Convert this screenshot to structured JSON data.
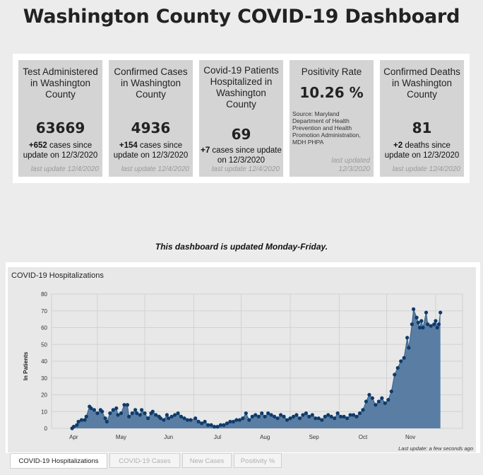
{
  "page": {
    "title": "Washington County COVID-19 Dashboard",
    "notice": "This dashboard is updated Monday-Friday."
  },
  "cards": [
    {
      "title": "Test Administered in Washington County",
      "value": "63669",
      "delta": "+652",
      "delta_text": " cases since update on 12/3/2020",
      "last_update": "last update 12/4/2020"
    },
    {
      "title": "Confirmed Cases in Washington County",
      "value": "4936",
      "delta": "+154",
      "delta_text": " cases since update on 12/3/2020",
      "last_update": "last update 12/4/2020"
    },
    {
      "title": "Covid-19 Patients Hospitalized in Washington County",
      "value": "69",
      "delta": "+7",
      "delta_text": " cases since update on 12/3/2020",
      "last_update": "last update 12/4/2020"
    },
    {
      "title": "Positivity Rate",
      "value": "10.26 %",
      "source": "Source: Maryland Department of Health Prevention and Health Promotion Administration, MDH PHPA",
      "last_update": "last updated 12/3/2020"
    },
    {
      "title": "Confirmed Deaths in Washington County",
      "value": "81",
      "delta": "+2",
      "delta_text": " deaths since update on 12/3/2020",
      "last_update": "last update 12/4/2020"
    }
  ],
  "chart_data": {
    "type": "area",
    "title": "COVID-19 Hospitalizations",
    "ylabel": "In Patients",
    "xlabel": "",
    "ylim": [
      0,
      80
    ],
    "y_ticks": [
      0,
      10,
      20,
      30,
      40,
      50,
      60,
      70,
      80
    ],
    "x_tick_labels": [
      "Apr",
      "May",
      "Jun",
      "Jul",
      "Aug",
      "Sep",
      "Oct",
      "Nov"
    ],
    "x_range_days": [
      -13,
      247
    ],
    "x_days": [
      0,
      1,
      3,
      4,
      6,
      8,
      9,
      11,
      12,
      14,
      16,
      18,
      19,
      21,
      22,
      24,
      26,
      28,
      29,
      31,
      33,
      35,
      36,
      38,
      40,
      41,
      43,
      44,
      46,
      48,
      50,
      51,
      53,
      55,
      56,
      58,
      60,
      61,
      63,
      65,
      67,
      69,
      71,
      73,
      75,
      78,
      80,
      82,
      84,
      86,
      88,
      90,
      92,
      94,
      96,
      98,
      100,
      102,
      104,
      106,
      108,
      110,
      112,
      114,
      116,
      118,
      120,
      122,
      124,
      126,
      128,
      130,
      132,
      134,
      136,
      138,
      140,
      142,
      144,
      146,
      148,
      150,
      152,
      154,
      156,
      158,
      160,
      162,
      164,
      166,
      168,
      170,
      172,
      174,
      176,
      178,
      180,
      182,
      184,
      186,
      188,
      190,
      192,
      194,
      196,
      198,
      200,
      202,
      204,
      206,
      208,
      210,
      212,
      213,
      215,
      216,
      218,
      219,
      220,
      221,
      222,
      224,
      225,
      227,
      229,
      230,
      231,
      232,
      233
    ],
    "values": [
      0,
      1,
      2,
      4,
      5,
      5,
      7,
      13,
      12,
      11,
      9,
      11,
      10,
      6,
      4,
      9,
      11,
      12,
      8,
      9,
      14,
      14,
      7,
      9,
      11,
      9,
      8,
      11,
      9,
      6,
      9,
      10,
      8,
      7,
      6,
      5,
      8,
      6,
      7,
      8,
      9,
      7,
      6,
      5,
      5,
      6,
      4,
      3,
      4,
      2,
      2,
      1,
      1,
      2,
      2,
      3,
      4,
      4,
      5,
      5,
      6,
      9,
      5,
      7,
      8,
      7,
      9,
      7,
      9,
      8,
      7,
      6,
      8,
      7,
      5,
      6,
      7,
      8,
      6,
      8,
      9,
      7,
      8,
      6,
      6,
      5,
      7,
      8,
      7,
      6,
      9,
      7,
      7,
      6,
      8,
      8,
      7,
      9,
      11,
      16,
      20,
      18,
      14,
      16,
      18,
      15,
      17,
      22,
      32,
      36,
      40,
      42,
      54,
      48,
      62,
      71,
      66,
      63,
      60,
      64,
      60,
      69,
      62,
      61,
      62,
      64,
      60,
      62,
      69
    ],
    "last_updated": "Last update: a few seconds ago",
    "colors": {
      "fill": "#5a7ea3",
      "line": "#3a5f85",
      "marker": "#0e3b6b"
    }
  },
  "tabs": [
    {
      "label": "COVID-19 Hospitalizations",
      "active": true
    },
    {
      "label": "COVID-19 Cases",
      "active": false
    },
    {
      "label": "New Cases",
      "active": false
    },
    {
      "label": "Positivity %",
      "active": false
    }
  ]
}
